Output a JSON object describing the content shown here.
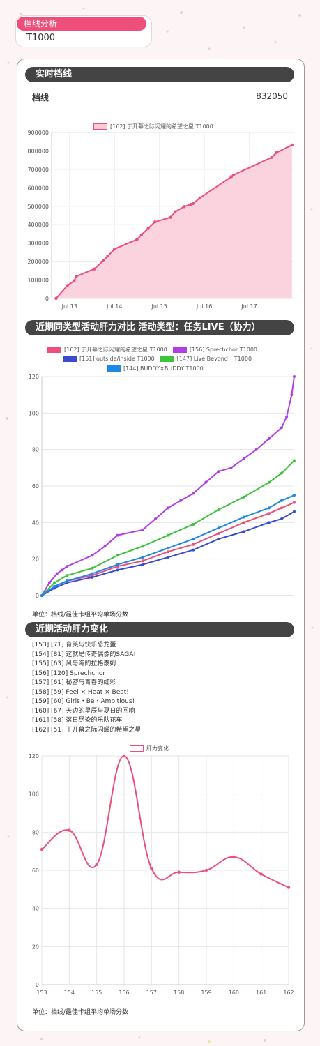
{
  "header": {
    "title": "档线分析",
    "value": "T1000"
  },
  "realtime": {
    "section_title": "实时档线",
    "row_label": "档线",
    "row_value": "832050"
  },
  "compare": {
    "section_title": "近期同类型活动肝力对比  活动类型：任务LIVE（协力）",
    "unit": "单位：档线/最佳卡组平均单场分数"
  },
  "recent": {
    "section_title": "近期活动肝力变化",
    "items": [
      "[153]  [71]  育美与快乐恐龙蛋",
      "[154]  [81]  这就是传奇偶像的SAGA!",
      "[155]  [63]  风与海的拉格泰姆",
      "[156]  [120]  Sprechchor",
      "[157]  [61]  秘密与青春的虹彩",
      "[158]  [59]  Feel × Heat × Beat!",
      "[159]  [60]  Girls・Be・Ambitious!",
      "[160]  [67]  天边的星辰与夏日的回响",
      "[161]  [58]  落日尽染的乐队花车",
      "[162]  [51]  于开幕之际闪耀的希望之星"
    ],
    "unit": "单位：档线/最佳卡组平均单场分数"
  },
  "colors": {
    "accent": "#ee4e7a",
    "bar": "#444444"
  },
  "chart_data": [
    {
      "type": "area",
      "series": [
        {
          "name": "[162] 于开幕之际闪耀的希望之星  T1000",
          "color": "#ee4e7a",
          "x": [
            12.7,
            12.95,
            13.1,
            13.15,
            13.55,
            13.75,
            13.85,
            14.0,
            14.5,
            14.6,
            14.75,
            14.9,
            15.25,
            15.35,
            15.55,
            15.7,
            15.75,
            15.9,
            16.6,
            16.65,
            17.5,
            17.6,
            17.95
          ],
          "values": [
            0,
            70000,
            95000,
            120000,
            160000,
            205000,
            230000,
            268000,
            320000,
            345000,
            380000,
            415000,
            440000,
            470000,
            498000,
            510000,
            515000,
            545000,
            660000,
            670000,
            765000,
            790000,
            832050
          ]
        }
      ],
      "x_ticks": [
        "Jul 13",
        "Jul 14",
        "Jul 15",
        "Jul 16",
        "Jul 17"
      ],
      "x_tick_values": [
        13,
        14,
        15,
        16,
        17
      ],
      "xlim": [
        12.6,
        18.0
      ],
      "ylim": [
        0,
        900000
      ],
      "y_ticks": [
        "0",
        "100000",
        "200000",
        "300000",
        "400000",
        "500000",
        "600000",
        "700000",
        "800000",
        "900000"
      ],
      "legend": "top"
    },
    {
      "type": "line",
      "xlim": [
        0,
        1
      ],
      "ylim": [
        0,
        120
      ],
      "y_ticks": [
        "0",
        "20",
        "40",
        "60",
        "80",
        "100",
        "120"
      ],
      "legend": "top",
      "series": [
        {
          "name": "[162] 于开幕之际闪耀的希望之星  T1000",
          "color": "#ee4e7a",
          "x": [
            0,
            0.05,
            0.1,
            0.2,
            0.3,
            0.4,
            0.5,
            0.6,
            0.7,
            0.8,
            0.9,
            0.95,
            1.0
          ],
          "values": [
            0,
            5,
            8,
            11,
            16,
            19,
            24,
            28,
            34,
            40,
            45,
            48,
            51
          ]
        },
        {
          "name": "[156] Sprechchor  T1000",
          "color": "#b03ee8",
          "x": [
            0,
            0.03,
            0.06,
            0.08,
            0.1,
            0.2,
            0.25,
            0.3,
            0.4,
            0.45,
            0.5,
            0.55,
            0.6,
            0.65,
            0.7,
            0.75,
            0.8,
            0.85,
            0.9,
            0.95,
            0.97,
            0.99,
            1.0
          ],
          "values": [
            0,
            7,
            12,
            14,
            16,
            22,
            27,
            33,
            36,
            42,
            48,
            52,
            56,
            62,
            68,
            70,
            75,
            80,
            86,
            92,
            98,
            110,
            120
          ]
        },
        {
          "name": "[151] outside/inside  T1000",
          "color": "#3a4bd0",
          "x": [
            0,
            0.05,
            0.1,
            0.2,
            0.3,
            0.4,
            0.5,
            0.6,
            0.7,
            0.8,
            0.9,
            0.95,
            1.0
          ],
          "values": [
            0,
            4,
            7,
            10,
            14,
            17,
            21,
            25,
            31,
            35,
            40,
            42,
            46
          ]
        },
        {
          "name": "[147] Live Beyond!!  T1000",
          "color": "#3cc23c",
          "x": [
            0,
            0.05,
            0.1,
            0.2,
            0.3,
            0.4,
            0.5,
            0.6,
            0.7,
            0.8,
            0.9,
            0.95,
            1.0
          ],
          "values": [
            0,
            7,
            11,
            15,
            22,
            27,
            33,
            39,
            47,
            54,
            62,
            67,
            74
          ]
        },
        {
          "name": "[144] BUDDY×BUDDY  T1000",
          "color": "#1e88e5",
          "x": [
            0,
            0.05,
            0.1,
            0.2,
            0.3,
            0.4,
            0.5,
            0.6,
            0.7,
            0.8,
            0.9,
            0.95,
            1.0
          ],
          "values": [
            0,
            5,
            8,
            12,
            17,
            21,
            26,
            31,
            37,
            43,
            48,
            52,
            55
          ]
        }
      ]
    },
    {
      "type": "line",
      "categories": [
        "153",
        "154",
        "155",
        "156",
        "157",
        "158",
        "159",
        "160",
        "161",
        "162"
      ],
      "series": [
        {
          "name": "肝力变化",
          "color": "#ee4e7a",
          "values": [
            71,
            81,
            63,
            120,
            61,
            59,
            60,
            67,
            58,
            51
          ]
        }
      ],
      "ylim": [
        0,
        120
      ],
      "y_ticks": [
        "0",
        "20",
        "40",
        "60",
        "80",
        "100",
        "120"
      ],
      "legend": "top"
    }
  ]
}
